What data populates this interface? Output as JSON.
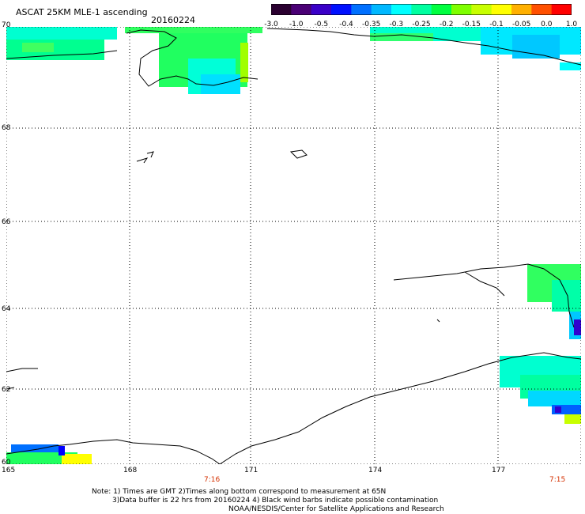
{
  "title": "ASCAT 25KM MLE-1 ascending",
  "date": "20160224",
  "colorbar": {
    "colors": [
      "#2a0030",
      "#4a0075",
      "#3a00c8",
      "#0010ff",
      "#0070ff",
      "#00b8ff",
      "#00ffff",
      "#00ffa0",
      "#00ff40",
      "#7fff00",
      "#c8ff00",
      "#ffff00",
      "#ffb000",
      "#ff5000",
      "#ff0000"
    ],
    "tick_labels": [
      "-3.0",
      "-1.0",
      "-0.5",
      "-0.4",
      "-0.35",
      "-0.3",
      "-0.25",
      "-0.2",
      "-0.15",
      "-0.1",
      "-0.05",
      "0.0",
      "1.0"
    ]
  },
  "lat_labels": [
    "70",
    "68",
    "66",
    "64",
    "62",
    "60"
  ],
  "lon_labels": [
    "165",
    "168",
    "171",
    "174",
    "177"
  ],
  "time_labels": [
    "7:16",
    "7:15"
  ],
  "notes": [
    "Note: 1) Times are GMT 2)Times along bottom correspond to measurement at 65N",
    "3)Data buffer is 22 hrs from 20160224 4) Black wind barbs indicate possible contamination",
    "NOAA/NESDIS/Center for Satellite Applications and Research"
  ]
}
